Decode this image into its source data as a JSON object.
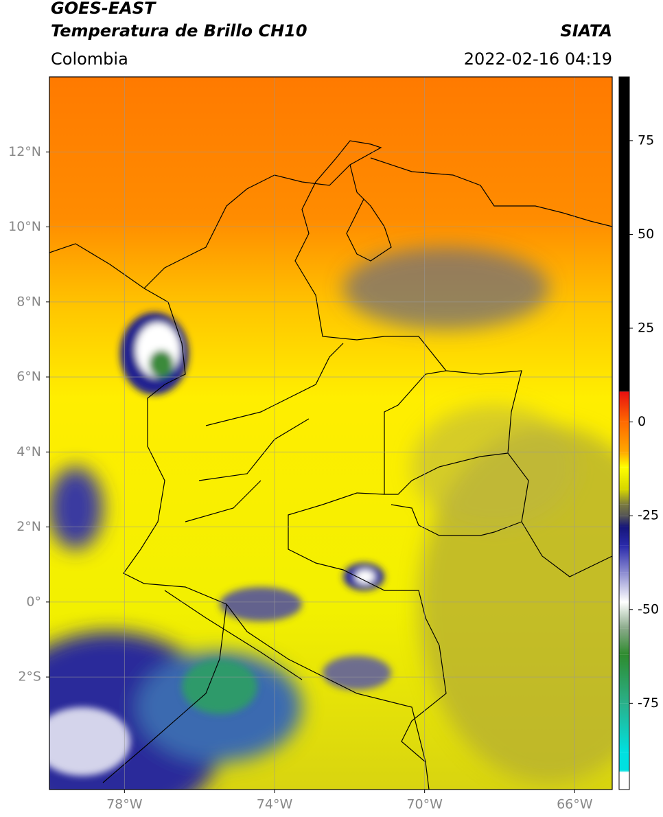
{
  "header": {
    "title": "GOES-EAST",
    "subtitle": "Temperatura de Brillo CH10",
    "source": "SIATA",
    "region": "Colombia",
    "timestamp": "2022-02-16 04:19"
  },
  "map": {
    "xlim": [
      -80,
      -65
    ],
    "ylim": [
      -5,
      14
    ],
    "xticks": [
      {
        "value": -78,
        "label": "78°W"
      },
      {
        "value": -74,
        "label": "74°W"
      },
      {
        "value": -70,
        "label": "70°W"
      },
      {
        "value": -66,
        "label": "66°W"
      }
    ],
    "yticks": [
      {
        "value": 12,
        "label": "12°N"
      },
      {
        "value": 10,
        "label": "10°N"
      },
      {
        "value": 8,
        "label": "8°N"
      },
      {
        "value": 6,
        "label": "6°N"
      },
      {
        "value": 4,
        "label": "4°N"
      },
      {
        "value": 2,
        "label": "2°N"
      },
      {
        "value": 0,
        "label": "0°"
      },
      {
        "value": -2,
        "label": "2°S"
      }
    ],
    "grid": true
  },
  "colorbar": {
    "lim": [
      -98,
      92
    ],
    "ticks": [
      75,
      50,
      25,
      0,
      -25,
      -50,
      -75
    ],
    "stops": [
      {
        "value": 92,
        "color": "#000000"
      },
      {
        "value": 8.2,
        "color": "#000000"
      },
      {
        "value": 8,
        "color": "#e81010"
      },
      {
        "value": 0,
        "color": "#ff6a00"
      },
      {
        "value": -8,
        "color": "#ffa800"
      },
      {
        "value": -12,
        "color": "#ffff00"
      },
      {
        "value": -18,
        "color": "#d6d600"
      },
      {
        "value": -22,
        "color": "#7a7a40"
      },
      {
        "value": -25,
        "color": "#555555"
      },
      {
        "value": -28,
        "color": "#15157a"
      },
      {
        "value": -33,
        "color": "#2a2aaa"
      },
      {
        "value": -40,
        "color": "#8a8ad0"
      },
      {
        "value": -48,
        "color": "#ffffff"
      },
      {
        "value": -55,
        "color": "#8aaa8a"
      },
      {
        "value": -62,
        "color": "#2e8b2e"
      },
      {
        "value": -75,
        "color": "#2ab08a"
      },
      {
        "value": -88,
        "color": "#00e0e0"
      },
      {
        "value": -93,
        "color": "#00e0e0"
      },
      {
        "value": -93.4,
        "color": "#ffffff"
      },
      {
        "value": -98,
        "color": "#ffffff"
      }
    ]
  }
}
